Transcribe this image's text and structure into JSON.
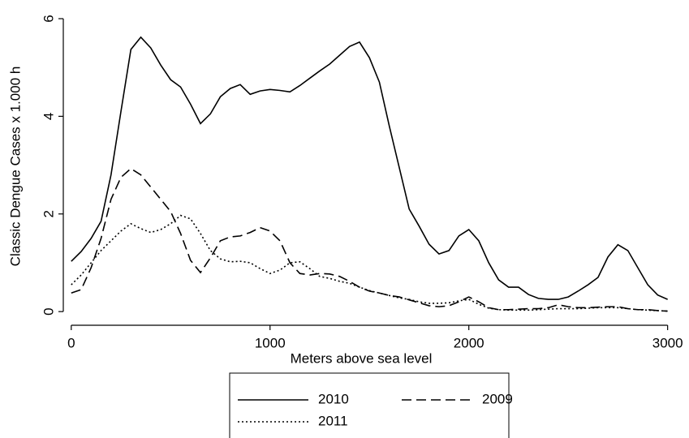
{
  "chart_data": {
    "type": "line",
    "xlabel": "Meters above sea level",
    "ylabel": "Classic Dengue Cases x 1.000 h",
    "xlim": [
      -40,
      3030
    ],
    "ylim": [
      -0.28,
      6.1
    ],
    "xticks": [
      0,
      1000,
      2000,
      3000
    ],
    "yticks": [
      0,
      2,
      4,
      6
    ],
    "grid": false,
    "legend": "bottom",
    "x": [
      0,
      50,
      100,
      150,
      200,
      250,
      300,
      350,
      400,
      450,
      500,
      550,
      600,
      650,
      700,
      750,
      800,
      850,
      900,
      950,
      1000,
      1050,
      1100,
      1150,
      1200,
      1250,
      1300,
      1350,
      1400,
      1450,
      1500,
      1550,
      1600,
      1650,
      1700,
      1750,
      1800,
      1850,
      1900,
      1950,
      2000,
      2050,
      2100,
      2150,
      2200,
      2250,
      2300,
      2350,
      2400,
      2450,
      2500,
      2550,
      2600,
      2650,
      2700,
      2750,
      2800,
      2850,
      2900,
      2950,
      3000
    ],
    "series": [
      {
        "name": "2010",
        "color": "#000000",
        "linestyle": "solid",
        "values": [
          1.03,
          1.23,
          1.5,
          1.85,
          2.8,
          4.1,
          5.37,
          5.62,
          5.4,
          5.05,
          4.75,
          4.6,
          4.25,
          3.85,
          4.05,
          4.4,
          4.57,
          4.65,
          4.45,
          4.52,
          4.55,
          4.53,
          4.5,
          4.63,
          4.78,
          4.93,
          5.07,
          5.25,
          5.43,
          5.52,
          5.2,
          4.7,
          3.8,
          2.95,
          2.1,
          1.75,
          1.38,
          1.18,
          1.25,
          1.55,
          1.68,
          1.45,
          1.0,
          0.65,
          0.5,
          0.5,
          0.35,
          0.27,
          0.25,
          0.25,
          0.3,
          0.42,
          0.55,
          0.7,
          1.12,
          1.37,
          1.25,
          0.9,
          0.55,
          0.34,
          0.25
        ]
      },
      {
        "name": "2009",
        "color": "#000000",
        "linestyle": "dashed",
        "values": [
          0.38,
          0.45,
          0.9,
          1.5,
          2.3,
          2.75,
          2.93,
          2.8,
          2.55,
          2.3,
          2.05,
          1.6,
          1.05,
          0.8,
          1.1,
          1.45,
          1.53,
          1.55,
          1.62,
          1.72,
          1.65,
          1.45,
          1.0,
          0.78,
          0.75,
          0.78,
          0.77,
          0.72,
          0.62,
          0.5,
          0.42,
          0.38,
          0.33,
          0.3,
          0.24,
          0.18,
          0.12,
          0.1,
          0.12,
          0.2,
          0.3,
          0.2,
          0.08,
          0.04,
          0.04,
          0.05,
          0.06,
          0.06,
          0.08,
          0.14,
          0.1,
          0.08,
          0.08,
          0.09,
          0.1,
          0.1,
          0.06,
          0.04,
          0.04,
          0.02,
          0.01
        ]
      },
      {
        "name": "2011",
        "color": "#000000",
        "linestyle": "dotted",
        "values": [
          0.55,
          0.75,
          1.0,
          1.25,
          1.45,
          1.65,
          1.8,
          1.7,
          1.62,
          1.68,
          1.8,
          1.97,
          1.9,
          1.6,
          1.25,
          1.08,
          1.02,
          1.03,
          1.0,
          0.88,
          0.78,
          0.85,
          1.0,
          1.02,
          0.88,
          0.72,
          0.68,
          0.62,
          0.58,
          0.5,
          0.43,
          0.38,
          0.33,
          0.28,
          0.25,
          0.2,
          0.17,
          0.17,
          0.18,
          0.22,
          0.25,
          0.15,
          0.07,
          0.04,
          0.03,
          0.03,
          0.03,
          0.04,
          0.05,
          0.06,
          0.06,
          0.06,
          0.07,
          0.08,
          0.08,
          0.08,
          0.06,
          0.04,
          0.03,
          0.02,
          0.01
        ]
      }
    ]
  }
}
